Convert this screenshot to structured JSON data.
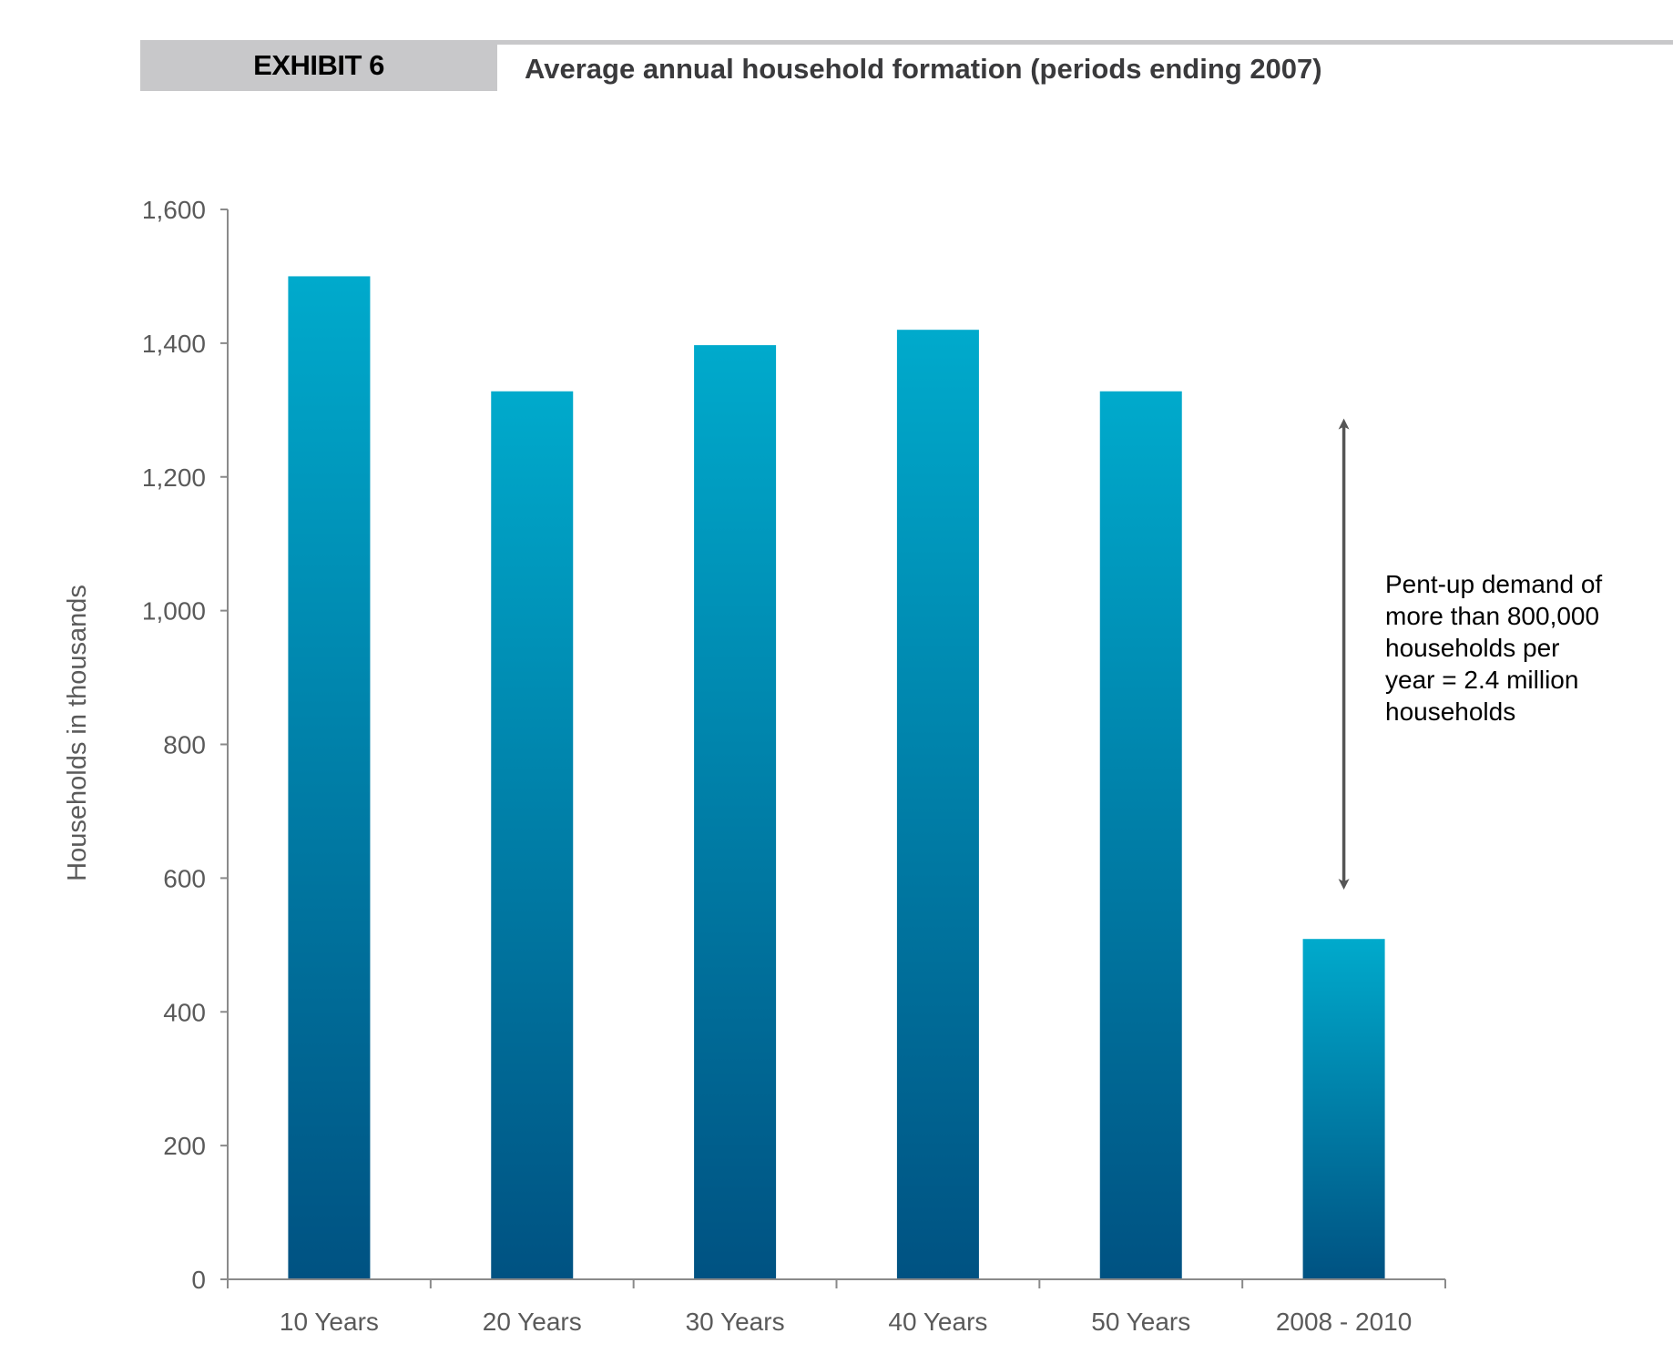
{
  "header": {
    "exhibit_label": "EXHIBIT 6",
    "title": "Average annual household formation (periods ending 2007)"
  },
  "annotation": {
    "text": "Pent-up demand of\nmore than 800,000\nhouseholds per\nyear = 2.4 million\nhouseholds"
  },
  "colors": {
    "bar_top": "#00aacc",
    "bar_bottom": "#005282",
    "axis": "#8a8a8a",
    "arrow": "#555555",
    "header_gray": "#c8c8ca"
  },
  "chart_data": {
    "type": "bar",
    "title": "Average annual household formation (periods ending 2007)",
    "xlabel": "",
    "ylabel": "Households in thousands",
    "categories": [
      "10 Years",
      "20 Years",
      "30 Years",
      "40 Years",
      "50 Years",
      "2008 - 2010"
    ],
    "values": [
      1500,
      1328,
      1397,
      1420,
      1328,
      509
    ],
    "ylim": [
      0,
      1600
    ],
    "yticks": [
      0,
      200,
      400,
      600,
      800,
      1000,
      1200,
      1400,
      1600
    ],
    "ytick_labels": [
      "0",
      "200",
      "400",
      "600",
      "800",
      "1,000",
      "1,200",
      "1,400",
      "1,600"
    ],
    "grid": false,
    "legend": "none",
    "annotation_arrow": {
      "category": "2008 - 2010",
      "from_value": 1290,
      "to_value": 580
    }
  }
}
